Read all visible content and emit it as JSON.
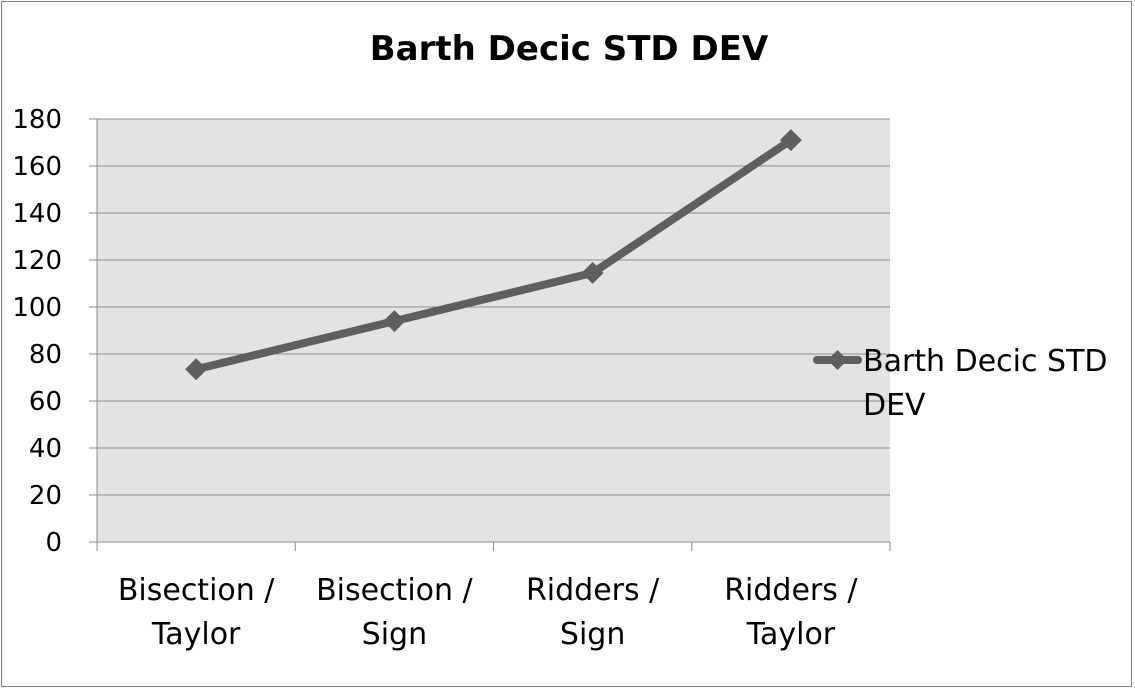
{
  "chart_data": {
    "type": "line",
    "title": "Barth Decic STD DEV",
    "xlabel": "",
    "ylabel": "",
    "categories": [
      [
        "Bisection /",
        "Taylor"
      ],
      [
        "Bisection /",
        "Sign"
      ],
      [
        "Ridders /",
        "Sign"
      ],
      [
        "Ridders /",
        "Taylor"
      ]
    ],
    "series": [
      {
        "name": "Barth Decic STD DEV",
        "legend_lines": [
          "Barth Decic STD",
          "DEV"
        ],
        "values": [
          73.5,
          94,
          114.5,
          171
        ],
        "color": "#5f5f5f",
        "marker": "diamond"
      }
    ],
    "ylim": [
      0,
      180
    ],
    "yticks": [
      0,
      20,
      40,
      60,
      80,
      100,
      120,
      140,
      160,
      180
    ],
    "grid": true,
    "plot_background": "#e3e3e3",
    "legend_position": "right"
  }
}
